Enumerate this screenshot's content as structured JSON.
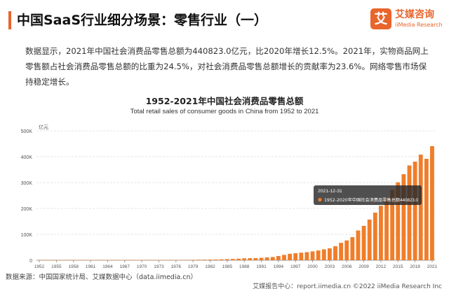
{
  "header": {
    "title": "中国SaaS行业细分场景：零售行业（一）",
    "accent_color": "#e8652c"
  },
  "brand": {
    "logo_glyph": "艾",
    "name": "艾媒咨询",
    "sub": "iiMedia Research",
    "color": "#e8652c"
  },
  "intro": "数据显示，2021年中国社会消费品零售总额为440823.0亿元，比2020年增长12.5%。2021年，实物商品网上零售额占社会消费品零售总额的比重为24.5%，对社会消费品零售总额增长的贡献率为23.6%。网络零售市场保持稳定增长。",
  "tooltip": {
    "date": "2021-12-31",
    "series_label": "1952-2020年中国社会消费品零售总额",
    "value": "440823.0"
  },
  "footer": {
    "source": "数据来源：中国国家统计局、艾媒数据中心（data.iimedia.cn）",
    "copyright": "艾媒报告中心：report.iimedia.cn ©2022 iiMedia Research Inc"
  },
  "chart_data": {
    "type": "bar",
    "title": "1952-2021年中国社会消费品零售总额",
    "subtitle": "Total retail sales of consumer goods in China from 1952 to 2021",
    "ylabel": "亿元",
    "ylim": [
      0,
      500000
    ],
    "yticks": [
      0,
      100000,
      200000,
      300000,
      400000,
      500000
    ],
    "ytick_labels": [
      "0",
      "100K",
      "200K",
      "300K",
      "400K",
      "500K"
    ],
    "xtick_labels": [
      "1952",
      "1955",
      "1958",
      "1961",
      "1964",
      "1967",
      "1970",
      "1973",
      "1976",
      "1979",
      "1982",
      "1985",
      "1988",
      "1991",
      "1994",
      "1997",
      "2000",
      "2003",
      "2006",
      "2009",
      "2012",
      "2015",
      "2018",
      "2021"
    ],
    "grid": true,
    "bar_color": "#f07d2a",
    "categories": [
      "1952",
      "1953",
      "1954",
      "1955",
      "1956",
      "1957",
      "1958",
      "1959",
      "1960",
      "1961",
      "1962",
      "1963",
      "1964",
      "1965",
      "1966",
      "1967",
      "1968",
      "1969",
      "1970",
      "1971",
      "1972",
      "1973",
      "1974",
      "1975",
      "1976",
      "1977",
      "1978",
      "1979",
      "1980",
      "1981",
      "1982",
      "1983",
      "1984",
      "1985",
      "1986",
      "1987",
      "1988",
      "1989",
      "1990",
      "1991",
      "1992",
      "1993",
      "1994",
      "1995",
      "1996",
      "1997",
      "1998",
      "1999",
      "2000",
      "2001",
      "2002",
      "2003",
      "2004",
      "2005",
      "2006",
      "2007",
      "2008",
      "2009",
      "2010",
      "2011",
      "2012",
      "2013",
      "2014",
      "2015",
      "2016",
      "2017",
      "2018",
      "2019",
      "2020",
      "2021"
    ],
    "values": [
      277,
      348,
      382,
      392,
      461,
      474,
      548,
      638,
      696,
      607,
      604,
      605,
      638,
      670,
      732,
      770,
      737,
      801,
      858,
      929,
      1023,
      1107,
      1163,
      1271,
      1339,
      1433,
      1559,
      1800,
      2140,
      2350,
      2570,
      2849,
      3376,
      4305,
      4950,
      5820,
      7440,
      8101,
      8300,
      9416,
      10994,
      12462,
      16264,
      20620,
      24774,
      27299,
      29153,
      31135,
      34153,
      37595,
      42027,
      45842,
      53950,
      67177,
      76410,
      89210,
      114830,
      132678,
      156998,
      183919,
      210307,
      242843,
      271896,
      300931,
      332316,
      366262,
      380987,
      408017,
      391981,
      440823
    ]
  }
}
